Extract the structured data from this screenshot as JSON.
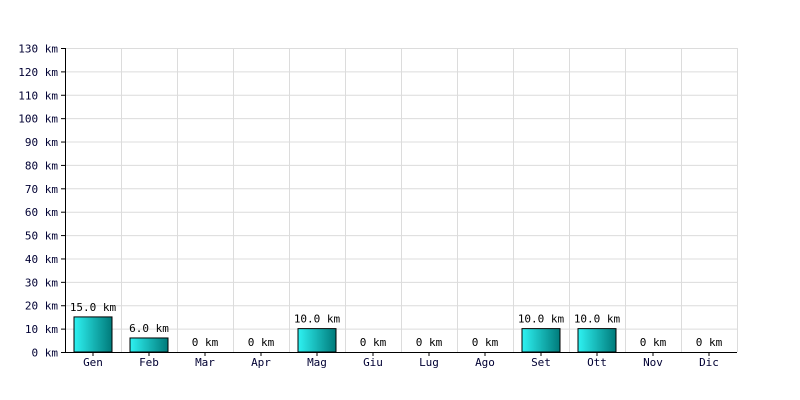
{
  "chart_data": {
    "type": "bar",
    "categories": [
      "Gen",
      "Feb",
      "Mar",
      "Apr",
      "Mag",
      "Giu",
      "Lug",
      "Ago",
      "Set",
      "Ott",
      "Nov",
      "Dic"
    ],
    "values": [
      15.0,
      6.0,
      0,
      0,
      10.0,
      0,
      0,
      0,
      10.0,
      10.0,
      0,
      0
    ],
    "data_labels": [
      "15.0 km",
      "6.0 km",
      "0 km",
      "0 km",
      "10.0 km",
      "0 km",
      "0 km",
      "0 km",
      "10.0 km",
      "10.0 km",
      "0 km",
      "0 km"
    ],
    "yticks": [
      0,
      10,
      20,
      30,
      40,
      50,
      60,
      70,
      80,
      90,
      100,
      110,
      120,
      130
    ],
    "ytick_labels": [
      "0 km",
      "10 km",
      "20 km",
      "30 km",
      "40 km",
      "50 km",
      "60 km",
      "70 km",
      "80 km",
      "90 km",
      "100 km",
      "110 km",
      "120 km",
      "130 km"
    ],
    "ylim": [
      0,
      130
    ],
    "grid": true,
    "title": "",
    "xlabel": "",
    "ylabel": "",
    "colors": {
      "bar_light": "#2ef2f2",
      "bar_dark": "#007a7a",
      "bar_edge": "#000000",
      "grid": "#dcdcdc",
      "axis": "#000000"
    }
  }
}
